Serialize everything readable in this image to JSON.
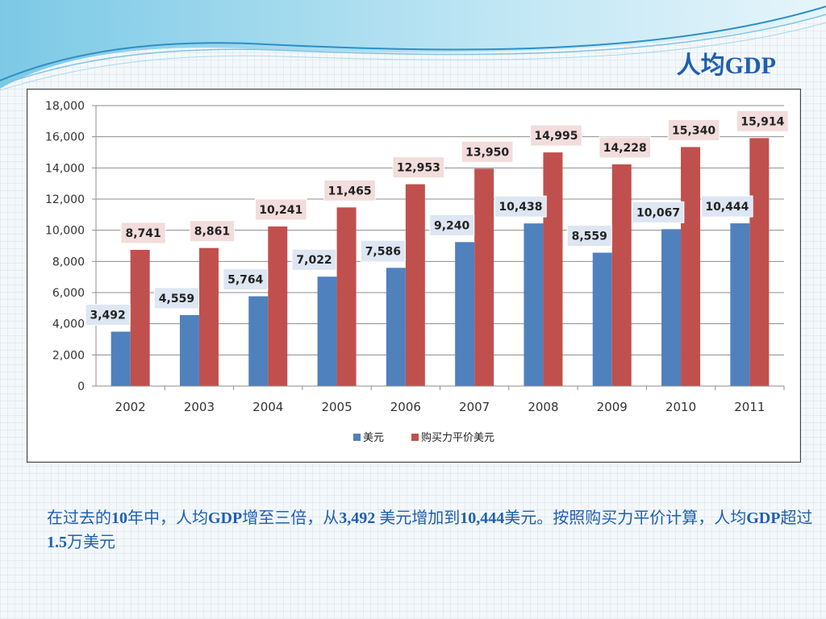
{
  "slide": {
    "title": "人均GDP",
    "caption_parts": [
      "在过去的",
      "10",
      "年中，人均",
      "GDP",
      "增至三倍，从",
      "3,492",
      " 美元增加到",
      "10,444",
      "美元。按照购买力平价计算，人均",
      "GDP",
      "超过",
      "1.5",
      "万美元"
    ]
  },
  "colors": {
    "usd": "#4f81bd",
    "ppp": "#c0504d",
    "title": "#1f5fae"
  },
  "chart_data": {
    "type": "bar",
    "categories": [
      "2002",
      "2003",
      "2004",
      "2005",
      "2006",
      "2007",
      "2008",
      "2009",
      "2010",
      "2011"
    ],
    "series": [
      {
        "name": "美元",
        "values": [
          3492,
          4559,
          5764,
          7022,
          7586,
          9240,
          10438,
          8559,
          10067,
          10444
        ],
        "labels": [
          "3,492",
          "4,559",
          "5,764",
          "7,022",
          "7,586",
          "9,240",
          "10,438",
          "8,559",
          "10,067",
          "10,444"
        ]
      },
      {
        "name": "购买力平价美元",
        "values": [
          8741,
          8861,
          10241,
          11465,
          12953,
          13950,
          14995,
          14228,
          15340,
          15914
        ],
        "labels": [
          "8,741",
          "8,861",
          "10,241",
          "11,465",
          "12,953",
          "13,950",
          "14,995",
          "14,228",
          "15,340",
          "15,914"
        ]
      }
    ],
    "y_ticks": [
      "0",
      "2,000",
      "4,000",
      "6,000",
      "8,000",
      "10,000",
      "12,000",
      "14,000",
      "16,000",
      "18,000"
    ],
    "ylim": [
      0,
      18000
    ],
    "grid": true,
    "legend": "bottom"
  }
}
